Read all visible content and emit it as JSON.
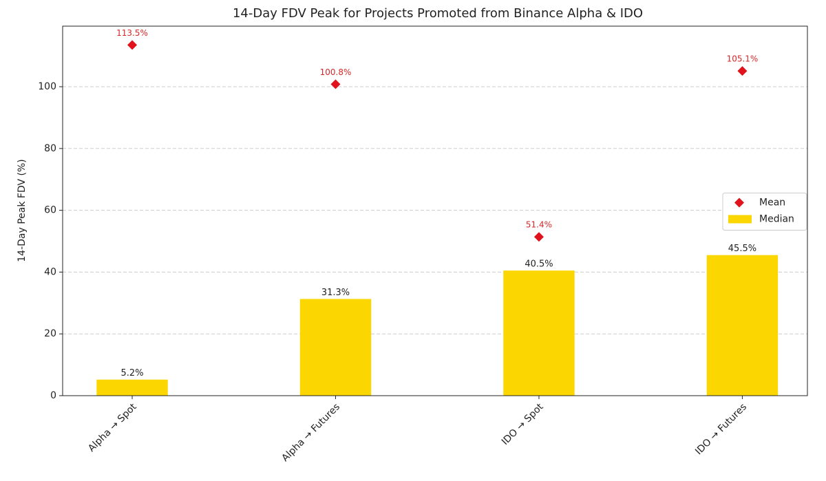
{
  "chart_data": {
    "type": "bar",
    "title": "14-Day FDV Peak for Projects Promoted from Binance Alpha & IDO",
    "y_label": "14-Day Peak FDV (%)",
    "categories": [
      "Alpha → Spot",
      "Alpha → Futures",
      "IDO → Spot",
      "IDO → Futures"
    ],
    "series": [
      {
        "name": "Mean",
        "type": "scatter",
        "marker": "diamond",
        "color": "#e0121b",
        "values": [
          113.5,
          100.8,
          51.4,
          105.1
        ],
        "value_labels": [
          "113.5%",
          "100.8%",
          "51.4%",
          "105.1%"
        ]
      },
      {
        "name": "Median",
        "type": "bar",
        "color": "#fbd600",
        "values": [
          5.2,
          31.3,
          40.5,
          45.5
        ],
        "value_labels": [
          "5.2%",
          "31.3%",
          "40.5%",
          "45.5%"
        ]
      }
    ],
    "ylim": [
      0,
      119.6
    ],
    "yticks": [
      0,
      20,
      40,
      60,
      80,
      100
    ],
    "grid": true,
    "legend": "center right"
  }
}
